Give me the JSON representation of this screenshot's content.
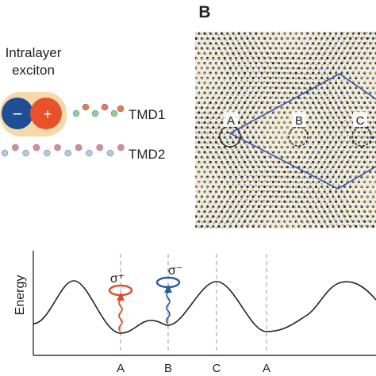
{
  "panel_b_label": "B",
  "intralayer_label_line1": "Intralayer",
  "intralayer_label_line2": "exciton",
  "exciton_minus": "−",
  "exciton_plus": "+",
  "layer_top_label": "TMD1",
  "layer_bottom_label": "TMD2",
  "moire_sites": [
    "A",
    "B",
    "C"
  ],
  "energy_axis_label": "Energy",
  "polarization_left": "σ⁺",
  "polarization_right": "σ⁻",
  "x_axis_sites": [
    "A",
    "B",
    "C",
    "A"
  ],
  "colors": {
    "electron": "#1f4e96",
    "hole": "#e8522a",
    "exciton_glow": "#f6d9a8",
    "tmd1_atom_a": "#e07a5f",
    "tmd1_atom_b": "#8ccf9a",
    "tmd2_atom_a": "#b8c4e8",
    "tmd2_atom_b": "#d98aa0",
    "moire_outline": "#3d5aa8",
    "sigma_plus": "#e04b2b",
    "sigma_minus": "#2a5aa6",
    "curve": "#222222"
  }
}
